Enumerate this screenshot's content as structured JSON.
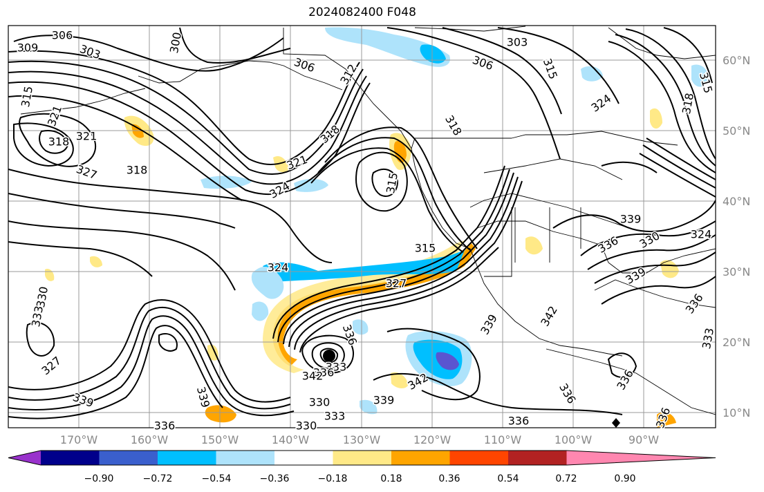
{
  "title": "2024082400 F048",
  "lat_labels": [
    "60°N",
    "50°N",
    "40°N",
    "30°N",
    "20°N",
    "10°N"
  ],
  "lon_labels": [
    "170°W",
    "160°W",
    "150°W",
    "140°W",
    "130°W",
    "120°W",
    "110°W",
    "100°W",
    "90°W"
  ],
  "colorbar": {
    "tick_labels": [
      "−0.90",
      "−0.72",
      "−0.54",
      "−0.36",
      "−0.18",
      "0.18",
      "0.36",
      "0.54",
      "0.72",
      "0.90"
    ],
    "colors": [
      "#9932cc",
      "#00008b",
      "#3a5fcd",
      "#00bfff",
      "#aee3fb",
      "#ffffff",
      "#ffe987",
      "#ffa500",
      "#ff4500",
      "#b22222",
      "#ff87b0"
    ]
  },
  "contour_labels": [
    {
      "id": "c309",
      "text": "309"
    },
    {
      "id": "c306a",
      "text": "306"
    },
    {
      "id": "c303a",
      "text": "303"
    },
    {
      "id": "c300",
      "text": "300"
    },
    {
      "id": "c306b",
      "text": "306"
    },
    {
      "id": "c312",
      "text": "312"
    },
    {
      "id": "c303b",
      "text": "303"
    },
    {
      "id": "c306c",
      "text": "306"
    },
    {
      "id": "c315a",
      "text": "315"
    },
    {
      "id": "c318a",
      "text": "318"
    },
    {
      "id": "c324a",
      "text": "324"
    },
    {
      "id": "c315b",
      "text": "315"
    },
    {
      "id": "c321a",
      "text": "321"
    },
    {
      "id": "c318b",
      "text": "318"
    },
    {
      "id": "c321b",
      "text": "321"
    },
    {
      "id": "c327a",
      "text": "327"
    },
    {
      "id": "c318c",
      "text": "318"
    },
    {
      "id": "c318d",
      "text": "318"
    },
    {
      "id": "c318e",
      "text": "318"
    },
    {
      "id": "c321c",
      "text": "321"
    },
    {
      "id": "c324b",
      "text": "324"
    },
    {
      "id": "c315c",
      "text": "315"
    },
    {
      "id": "c315d",
      "text": "315"
    },
    {
      "id": "c315e",
      "text": "315"
    },
    {
      "id": "c324c",
      "text": "324"
    },
    {
      "id": "c327b",
      "text": "327"
    },
    {
      "id": "c330a",
      "text": "330"
    },
    {
      "id": "c333a",
      "text": "333"
    },
    {
      "id": "c327c",
      "text": "327"
    },
    {
      "id": "c339a",
      "text": "339"
    },
    {
      "id": "c339b",
      "text": "339"
    },
    {
      "id": "c336a",
      "text": "336"
    },
    {
      "id": "c330b",
      "text": "330"
    },
    {
      "id": "c330c",
      "text": "330"
    },
    {
      "id": "c333b",
      "text": "333"
    },
    {
      "id": "c339c",
      "text": "339"
    },
    {
      "id": "c342a",
      "text": "342"
    },
    {
      "id": "c336b",
      "text": "336"
    },
    {
      "id": "c339d",
      "text": "339"
    },
    {
      "id": "c336c",
      "text": "336"
    },
    {
      "id": "c336d",
      "text": "336"
    },
    {
      "id": "c342b",
      "text": "342"
    },
    {
      "id": "c339e",
      "text": "339"
    },
    {
      "id": "c336e",
      "text": "336"
    },
    {
      "id": "c339f",
      "text": "339"
    },
    {
      "id": "c336f",
      "text": "336"
    },
    {
      "id": "c324d",
      "text": "324"
    },
    {
      "id": "c330d",
      "text": "330"
    },
    {
      "id": "c333c",
      "text": "333"
    },
    {
      "id": "c336g",
      "text": "336"
    },
    {
      "id": "c336h",
      "text": "336"
    },
    {
      "id": "c333d",
      "text": "333"
    },
    {
      "id": "c336i",
      "text": "336"
    },
    {
      "id": "c342c",
      "text": "342"
    }
  ],
  "storm_marker": "black-dot"
}
